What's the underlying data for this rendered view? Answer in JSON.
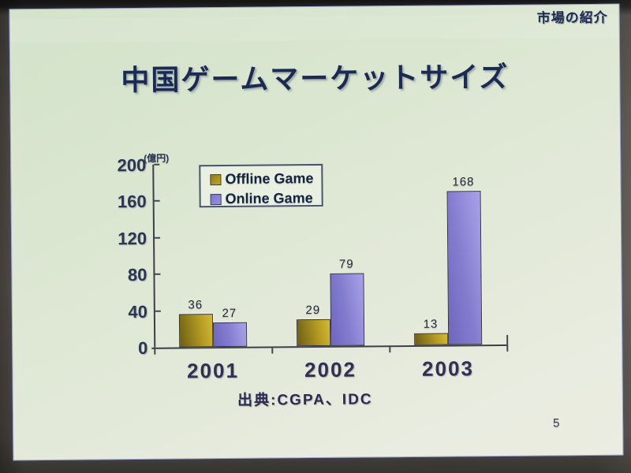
{
  "header": {
    "label": "市場の紹介"
  },
  "slide": {
    "title": "中国ゲームマーケットサイズ",
    "source": "出典:CGPA、IDC",
    "page_number": "5"
  },
  "chart_data": {
    "type": "bar",
    "categories": [
      "2001",
      "2002",
      "2003"
    ],
    "series": [
      {
        "name": "Offline Game",
        "values": [
          36,
          29,
          13
        ],
        "color": "#a8911e"
      },
      {
        "name": "Online Game",
        "values": [
          27,
          79,
          168
        ],
        "color": "#8c85d8"
      }
    ],
    "unit_label": "(億円)",
    "y_ticks": [
      0,
      40,
      80,
      120,
      160,
      200
    ],
    "ylim": [
      0,
      200
    ],
    "grid": false,
    "legend_position": "top-left-inside",
    "colors": {
      "offline": "#a8911e",
      "online": "#8c85d8",
      "slide_bg": "#e2e9d8",
      "text": "#1b2a52"
    }
  }
}
